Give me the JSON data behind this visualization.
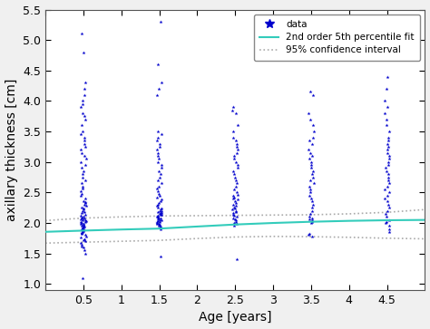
{
  "xlabel": "Age [years]",
  "ylabel": "axillary thickness [cm]",
  "xlim": [
    0.0,
    5.0
  ],
  "ylim": [
    0.9,
    5.5
  ],
  "yticks": [
    1.0,
    1.5,
    2.0,
    2.5,
    3.0,
    3.5,
    4.0,
    4.5,
    5.0,
    5.5
  ],
  "xticks": [
    0.0,
    0.5,
    1.0,
    1.5,
    2.0,
    2.5,
    3.0,
    3.5,
    4.0,
    4.5
  ],
  "xticklabels": [
    "",
    "0.5",
    "1",
    "1.5",
    "2",
    "2.5",
    "3",
    "3.5",
    "4",
    "4.5"
  ],
  "cohort_ages": [
    0.5,
    1.5,
    2.5,
    3.5,
    4.5
  ],
  "data_color": "#0000CC",
  "fit_color": "#33CCBB",
  "ci_color": "#AAAAAA",
  "data_cohort_0": {
    "age": 0.5,
    "values": [
      1.1,
      1.5,
      1.55,
      1.6,
      1.62,
      1.65,
      1.68,
      1.7,
      1.72,
      1.74,
      1.76,
      1.78,
      1.8,
      1.82,
      1.83,
      1.84,
      1.85,
      1.86,
      1.87,
      1.88,
      1.89,
      1.9,
      1.91,
      1.92,
      1.93,
      1.94,
      1.95,
      1.96,
      1.97,
      1.98,
      1.99,
      2.0,
      2.01,
      2.02,
      2.03,
      2.04,
      2.05,
      2.06,
      2.07,
      2.08,
      2.09,
      2.1,
      2.12,
      2.14,
      2.16,
      2.18,
      2.2,
      2.22,
      2.24,
      2.26,
      2.28,
      2.3,
      2.32,
      2.34,
      2.36,
      2.4,
      2.44,
      2.48,
      2.52,
      2.56,
      2.6,
      2.65,
      2.7,
      2.75,
      2.8,
      2.85,
      2.9,
      2.95,
      3.0,
      3.05,
      3.1,
      3.15,
      3.2,
      3.25,
      3.3,
      3.35,
      3.4,
      3.45,
      3.5,
      3.6,
      3.7,
      3.75,
      3.8,
      3.9,
      3.95,
      4.0,
      4.1,
      4.2,
      4.3,
      4.8,
      5.1
    ]
  },
  "data_cohort_1": {
    "age": 1.5,
    "values": [
      1.45,
      1.9,
      1.92,
      1.94,
      1.96,
      1.97,
      1.98,
      1.99,
      2.0,
      2.01,
      2.02,
      2.03,
      2.04,
      2.05,
      2.06,
      2.07,
      2.08,
      2.09,
      2.1,
      2.11,
      2.12,
      2.13,
      2.14,
      2.15,
      2.16,
      2.17,
      2.18,
      2.19,
      2.2,
      2.22,
      2.24,
      2.26,
      2.28,
      2.3,
      2.32,
      2.35,
      2.38,
      2.41,
      2.44,
      2.48,
      2.52,
      2.56,
      2.6,
      2.65,
      2.7,
      2.75,
      2.8,
      2.85,
      2.9,
      2.95,
      3.0,
      3.05,
      3.1,
      3.15,
      3.2,
      3.25,
      3.3,
      3.35,
      3.4,
      3.45,
      3.5,
      4.1,
      4.2,
      4.3,
      4.6,
      5.3
    ]
  },
  "data_cohort_2": {
    "age": 2.5,
    "values": [
      1.4,
      1.95,
      1.98,
      2.0,
      2.02,
      2.04,
      2.06,
      2.08,
      2.1,
      2.12,
      2.14,
      2.16,
      2.18,
      2.2,
      2.22,
      2.24,
      2.26,
      2.28,
      2.3,
      2.32,
      2.35,
      2.38,
      2.4,
      2.42,
      2.44,
      2.46,
      2.5,
      2.55,
      2.6,
      2.65,
      2.7,
      2.75,
      2.8,
      2.85,
      2.9,
      2.95,
      3.0,
      3.05,
      3.1,
      3.15,
      3.2,
      3.25,
      3.3,
      3.35,
      3.4,
      3.5,
      3.6,
      3.8,
      3.85,
      3.9
    ]
  },
  "data_cohort_3": {
    "age": 3.5,
    "values": [
      1.78,
      1.8,
      1.82,
      2.0,
      2.02,
      2.04,
      2.06,
      2.08,
      2.1,
      2.15,
      2.2,
      2.25,
      2.3,
      2.35,
      2.4,
      2.45,
      2.5,
      2.55,
      2.6,
      2.65,
      2.7,
      2.75,
      2.8,
      2.85,
      2.9,
      2.95,
      3.0,
      3.05,
      3.1,
      3.15,
      3.2,
      3.3,
      3.35,
      3.4,
      3.5,
      3.6,
      3.7,
      3.8,
      4.1,
      4.15
    ]
  },
  "data_cohort_4": {
    "age": 4.5,
    "values": [
      1.85,
      1.9,
      1.95,
      2.0,
      2.02,
      2.05,
      2.1,
      2.15,
      2.2,
      2.25,
      2.3,
      2.35,
      2.4,
      2.45,
      2.5,
      2.55,
      2.6,
      2.65,
      2.7,
      2.75,
      2.8,
      2.85,
      2.9,
      2.95,
      3.0,
      3.05,
      3.1,
      3.15,
      3.2,
      3.25,
      3.3,
      3.35,
      3.4,
      3.5,
      3.6,
      3.7,
      3.8,
      3.9,
      4.0,
      4.2,
      4.4
    ]
  },
  "fit_x": [
    0.0,
    0.5,
    1.0,
    1.5,
    2.0,
    2.5,
    3.0,
    3.5,
    4.0,
    4.5,
    5.0
  ],
  "fit_y": [
    1.855,
    1.875,
    1.893,
    1.908,
    1.942,
    1.975,
    2.0,
    2.02,
    2.035,
    2.045,
    2.05
  ],
  "ci_upper_y": [
    2.04,
    2.08,
    2.1,
    2.115,
    2.12,
    2.125,
    2.13,
    2.135,
    2.15,
    2.175,
    2.22
  ],
  "ci_lower_y": [
    1.67,
    1.685,
    1.7,
    1.715,
    1.745,
    1.77,
    1.78,
    1.775,
    1.765,
    1.75,
    1.74
  ],
  "legend_data_label": "data",
  "legend_fit_label": "2nd order 5th percentile fit",
  "legend_ci_label": "95% confidence interval",
  "jitter": 0.035,
  "marker_size": 3.0,
  "figsize": [
    4.74,
    3.63
  ],
  "dpi": 100,
  "bg_color": "#F0F0F0",
  "plot_bg_color": "#FFFFFF"
}
